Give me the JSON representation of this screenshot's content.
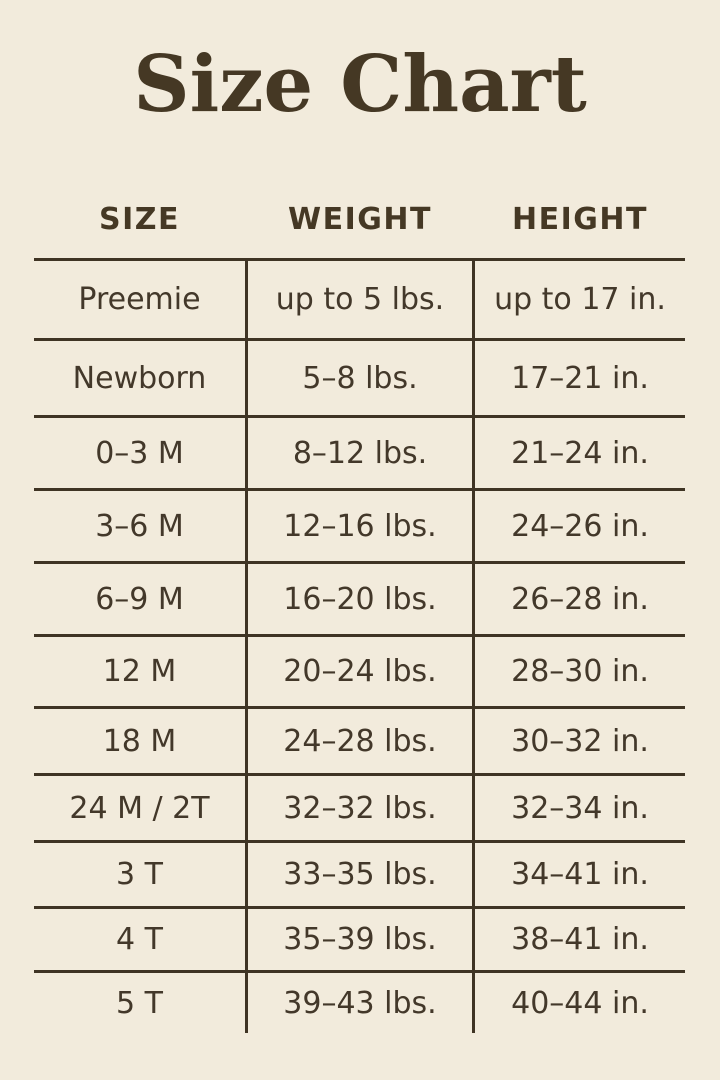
{
  "theme": {
    "background": "#f2ebdc",
    "title_color": "#453824",
    "text_color": "#43382a",
    "line_color": "#3f3424"
  },
  "chart_data": {
    "type": "table",
    "title": "Size Chart",
    "columns": [
      "SIZE",
      "WEIGHT",
      "HEIGHT"
    ],
    "rows": [
      [
        "Preemie",
        "up to 5 lbs.",
        "up to 17 in."
      ],
      [
        "Newborn",
        "5–8 lbs.",
        "17–21 in."
      ],
      [
        "0–3 M",
        "8–12 lbs.",
        "21–24 in."
      ],
      [
        "3–6 M",
        "12–16 lbs.",
        "24–26 in."
      ],
      [
        "6–9 M",
        "16–20 lbs.",
        "26–28 in."
      ],
      [
        "12 M",
        "20–24 lbs.",
        "28–30 in."
      ],
      [
        "18 M",
        "24–28 lbs.",
        "30–32 in."
      ],
      [
        "24 M / 2T",
        "32–32 lbs.",
        "32–34 in."
      ],
      [
        "3 T",
        "33–35 lbs.",
        "34–41 in."
      ],
      [
        "4 T",
        "35–39 lbs.",
        "38–41 in."
      ],
      [
        "5 T",
        "39–43 lbs.",
        "40–44 in."
      ]
    ]
  }
}
